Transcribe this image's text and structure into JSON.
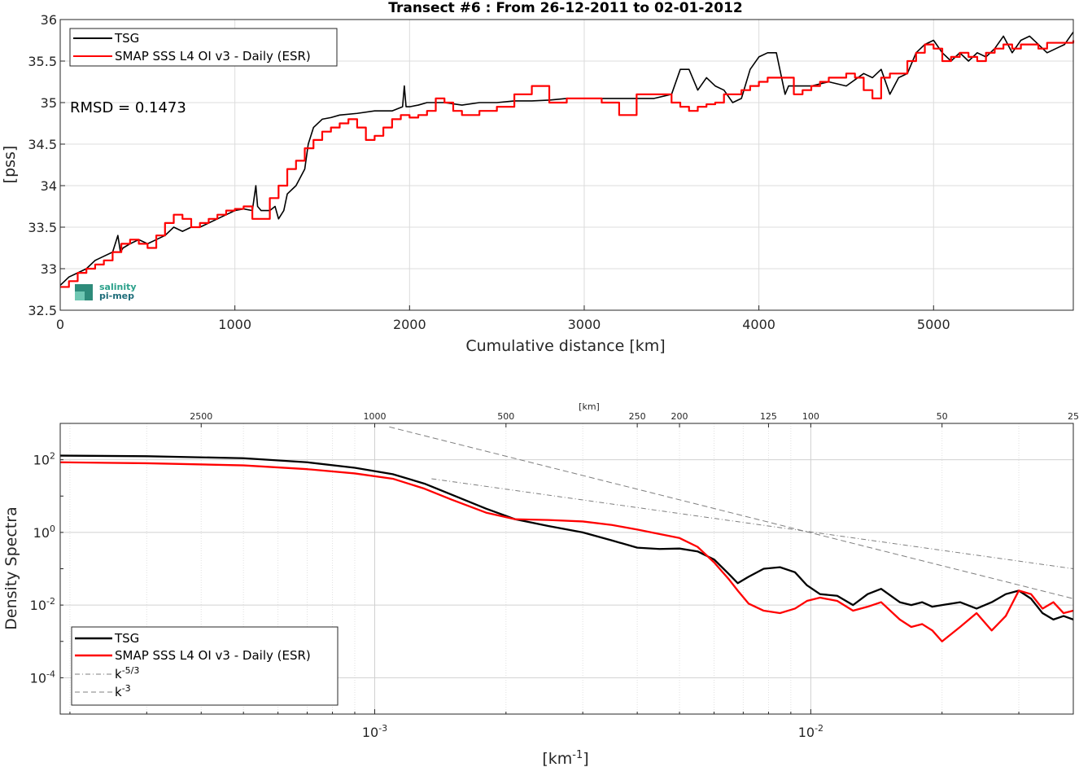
{
  "chart_data": [
    {
      "type": "line",
      "title": "Transect #6 : From 26-12-2011 to 02-01-2012",
      "xlabel": "Cumulative distance [km]",
      "ylabel": "[pss]",
      "xlim": [
        0,
        5800
      ],
      "ylim": [
        32.5,
        36
      ],
      "xticks": [
        "0",
        "1000",
        "2000",
        "3000",
        "4000",
        "5000"
      ],
      "yticks": [
        "32.5",
        "33",
        "33.5",
        "34",
        "34.5",
        "35",
        "35.5",
        "36"
      ],
      "grid": true,
      "legend_position": "top-left",
      "annotation": "RMSD = 0.1473",
      "logo": {
        "line1": "salinity",
        "line2": "pi-mep"
      },
      "series": [
        {
          "name": "TSG",
          "color": "#000000",
          "x": [
            0,
            50,
            100,
            150,
            200,
            250,
            300,
            330,
            345,
            360,
            400,
            450,
            500,
            550,
            600,
            650,
            700,
            750,
            800,
            850,
            900,
            950,
            1000,
            1050,
            1100,
            1120,
            1130,
            1150,
            1200,
            1230,
            1250,
            1280,
            1300,
            1350,
            1400,
            1420,
            1450,
            1500,
            1550,
            1600,
            1700,
            1800,
            1900,
            1960,
            1970,
            1980,
            2000,
            2050,
            2100,
            2200,
            2300,
            2400,
            2500,
            2600,
            2700,
            2800,
            2900,
            3000,
            3100,
            3200,
            3300,
            3400,
            3500,
            3550,
            3600,
            3650,
            3700,
            3750,
            3800,
            3850,
            3900,
            3950,
            4000,
            4050,
            4100,
            4150,
            4170,
            4200,
            4300,
            4400,
            4500,
            4600,
            4650,
            4700,
            4750,
            4800,
            4850,
            4900,
            4950,
            5000,
            5050,
            5100,
            5150,
            5200,
            5250,
            5300,
            5350,
            5400,
            5450,
            5500,
            5550,
            5600,
            5650,
            5700,
            5750,
            5800
          ],
          "y": [
            32.8,
            32.9,
            32.95,
            33.0,
            33.1,
            33.15,
            33.2,
            33.4,
            33.2,
            33.25,
            33.3,
            33.35,
            33.3,
            33.35,
            33.4,
            33.5,
            33.45,
            33.5,
            33.5,
            33.55,
            33.6,
            33.65,
            33.7,
            33.72,
            33.7,
            34.0,
            33.75,
            33.7,
            33.7,
            33.75,
            33.6,
            33.7,
            33.9,
            34.0,
            34.2,
            34.5,
            34.7,
            34.8,
            34.82,
            34.85,
            34.87,
            34.9,
            34.9,
            34.95,
            35.2,
            34.95,
            34.95,
            34.97,
            35.0,
            35.0,
            34.97,
            35.0,
            35.0,
            35.02,
            35.02,
            35.03,
            35.05,
            35.05,
            35.05,
            35.05,
            35.05,
            35.05,
            35.1,
            35.4,
            35.4,
            35.15,
            35.3,
            35.2,
            35.15,
            35.0,
            35.05,
            35.4,
            35.55,
            35.6,
            35.6,
            35.1,
            35.2,
            35.2,
            35.2,
            35.25,
            35.2,
            35.35,
            35.3,
            35.4,
            35.1,
            35.3,
            35.35,
            35.6,
            35.7,
            35.75,
            35.6,
            35.5,
            35.6,
            35.5,
            35.6,
            35.55,
            35.65,
            35.8,
            35.6,
            35.75,
            35.8,
            35.7,
            35.6,
            35.65,
            35.7,
            35.85
          ]
        },
        {
          "name": "SMAP SSS L4 OI v3 - Daily (ESR)",
          "color": "#ff0000",
          "x": [
            0,
            50,
            100,
            150,
            200,
            250,
            300,
            350,
            400,
            450,
            500,
            550,
            600,
            650,
            700,
            750,
            800,
            850,
            900,
            950,
            1000,
            1050,
            1100,
            1150,
            1200,
            1250,
            1300,
            1350,
            1400,
            1450,
            1500,
            1550,
            1600,
            1650,
            1700,
            1750,
            1800,
            1850,
            1900,
            1950,
            2000,
            2050,
            2100,
            2150,
            2200,
            2250,
            2300,
            2400,
            2500,
            2600,
            2700,
            2800,
            2900,
            3000,
            3100,
            3200,
            3300,
            3400,
            3500,
            3550,
            3600,
            3650,
            3700,
            3750,
            3800,
            3850,
            3900,
            3950,
            4000,
            4050,
            4100,
            4150,
            4200,
            4250,
            4300,
            4350,
            4400,
            4450,
            4500,
            4550,
            4600,
            4650,
            4700,
            4750,
            4800,
            4850,
            4900,
            4950,
            5000,
            5050,
            5100,
            5150,
            5200,
            5250,
            5300,
            5350,
            5400,
            5450,
            5500,
            5550,
            5600,
            5650,
            5700,
            5750,
            5800
          ],
          "y": [
            32.78,
            32.85,
            32.95,
            33.0,
            33.05,
            33.1,
            33.2,
            33.3,
            33.35,
            33.3,
            33.25,
            33.4,
            33.55,
            33.65,
            33.6,
            33.5,
            33.55,
            33.6,
            33.65,
            33.7,
            33.72,
            33.75,
            33.6,
            33.6,
            33.85,
            34.0,
            34.2,
            34.3,
            34.45,
            34.55,
            34.65,
            34.7,
            34.75,
            34.8,
            34.7,
            34.55,
            34.6,
            34.7,
            34.8,
            34.85,
            34.82,
            34.85,
            34.9,
            35.05,
            35.0,
            34.9,
            34.85,
            34.9,
            34.95,
            35.1,
            35.2,
            35.0,
            35.05,
            35.05,
            35.0,
            34.85,
            35.1,
            35.1,
            35.0,
            34.95,
            34.9,
            34.95,
            34.98,
            35.0,
            35.1,
            35.1,
            35.15,
            35.2,
            35.25,
            35.3,
            35.3,
            35.3,
            35.1,
            35.15,
            35.2,
            35.25,
            35.3,
            35.3,
            35.35,
            35.3,
            35.15,
            35.05,
            35.3,
            35.35,
            35.35,
            35.5,
            35.6,
            35.7,
            35.65,
            35.5,
            35.55,
            35.6,
            35.55,
            35.5,
            35.6,
            35.65,
            35.7,
            35.65,
            35.7,
            35.7,
            35.65,
            35.72,
            35.72,
            35.72,
            35.75
          ]
        }
      ]
    },
    {
      "type": "line",
      "xlabel": "[km-1]",
      "ylabel": "Density Spectra",
      "xscale": "log",
      "yscale": "log",
      "xlim": [
        0.00019,
        0.04
      ],
      "ylim": [
        1e-05,
        1000
      ],
      "xticks": [
        {
          "value": 0.001,
          "base": "10",
          "exp": "-3"
        },
        {
          "value": 0.01,
          "base": "10",
          "exp": "-2"
        }
      ],
      "yticks": [
        {
          "value": 100,
          "base": "10",
          "exp": "2"
        },
        {
          "value": 1,
          "base": "10",
          "exp": "0"
        },
        {
          "value": 0.01,
          "base": "10",
          "exp": "-2"
        },
        {
          "value": 0.0001,
          "base": "10",
          "exp": "-4"
        }
      ],
      "top_axis_label": "[km]",
      "top_axis_ticks": [
        "2500",
        "1000",
        "500",
        "250",
        "200",
        "125",
        "100",
        "50",
        "25"
      ],
      "grid": true,
      "legend_position": "bottom-left",
      "series": [
        {
          "name": "TSG",
          "color": "#000000",
          "x": [
            0.00019,
            0.0003,
            0.0005,
            0.0007,
            0.0009,
            0.0011,
            0.0013,
            0.0015,
            0.0018,
            0.0021,
            0.0025,
            0.003,
            0.0035,
            0.004,
            0.0045,
            0.005,
            0.0055,
            0.006,
            0.0065,
            0.0068,
            0.0072,
            0.0078,
            0.0085,
            0.0092,
            0.0098,
            0.0105,
            0.0115,
            0.0125,
            0.0135,
            0.0145,
            0.016,
            0.017,
            0.018,
            0.019,
            0.02,
            0.022,
            0.024,
            0.026,
            0.028,
            0.03,
            0.032,
            0.034,
            0.036,
            0.038,
            0.04
          ],
          "y": [
            130,
            125,
            110,
            85,
            60,
            40,
            22,
            11,
            4.5,
            2.3,
            1.5,
            1.0,
            0.6,
            0.38,
            0.35,
            0.36,
            0.3,
            0.18,
            0.07,
            0.04,
            0.06,
            0.1,
            0.11,
            0.08,
            0.035,
            0.02,
            0.018,
            0.01,
            0.02,
            0.028,
            0.012,
            0.01,
            0.012,
            0.009,
            0.01,
            0.012,
            0.008,
            0.012,
            0.02,
            0.025,
            0.015,
            0.006,
            0.004,
            0.005,
            0.004
          ]
        },
        {
          "name": "SMAP SSS L4 OI v3 - Daily (ESR)",
          "color": "#ff0000",
          "x": [
            0.00019,
            0.0003,
            0.0005,
            0.0007,
            0.0009,
            0.0011,
            0.0013,
            0.0015,
            0.0018,
            0.0021,
            0.0025,
            0.003,
            0.0035,
            0.004,
            0.0045,
            0.005,
            0.0055,
            0.006,
            0.0065,
            0.0068,
            0.0072,
            0.0078,
            0.0085,
            0.0092,
            0.0098,
            0.0105,
            0.0115,
            0.0125,
            0.0135,
            0.0145,
            0.016,
            0.017,
            0.018,
            0.019,
            0.02,
            0.022,
            0.024,
            0.026,
            0.028,
            0.03,
            0.032,
            0.034,
            0.036,
            0.038,
            0.04
          ],
          "y": [
            85,
            80,
            70,
            55,
            42,
            30,
            16,
            8,
            3.5,
            2.3,
            2.2,
            2.0,
            1.6,
            1.2,
            0.9,
            0.7,
            0.4,
            0.15,
            0.05,
            0.025,
            0.011,
            0.007,
            0.006,
            0.008,
            0.013,
            0.016,
            0.013,
            0.007,
            0.009,
            0.012,
            0.004,
            0.0025,
            0.003,
            0.002,
            0.001,
            0.0025,
            0.006,
            0.002,
            0.005,
            0.025,
            0.02,
            0.008,
            0.012,
            0.006,
            0.007
          ]
        },
        {
          "name": "k-5/3",
          "color": "#7f7f7f",
          "dash": "dashdot",
          "x": [
            0.00135,
            0.04
          ],
          "y": [
            30,
            0.1
          ]
        },
        {
          "name": "k-3",
          "color": "#7f7f7f",
          "dash": "dashed",
          "x": [
            0.00108,
            0.04
          ],
          "y": [
            800,
            0.015
          ]
        }
      ]
    }
  ]
}
